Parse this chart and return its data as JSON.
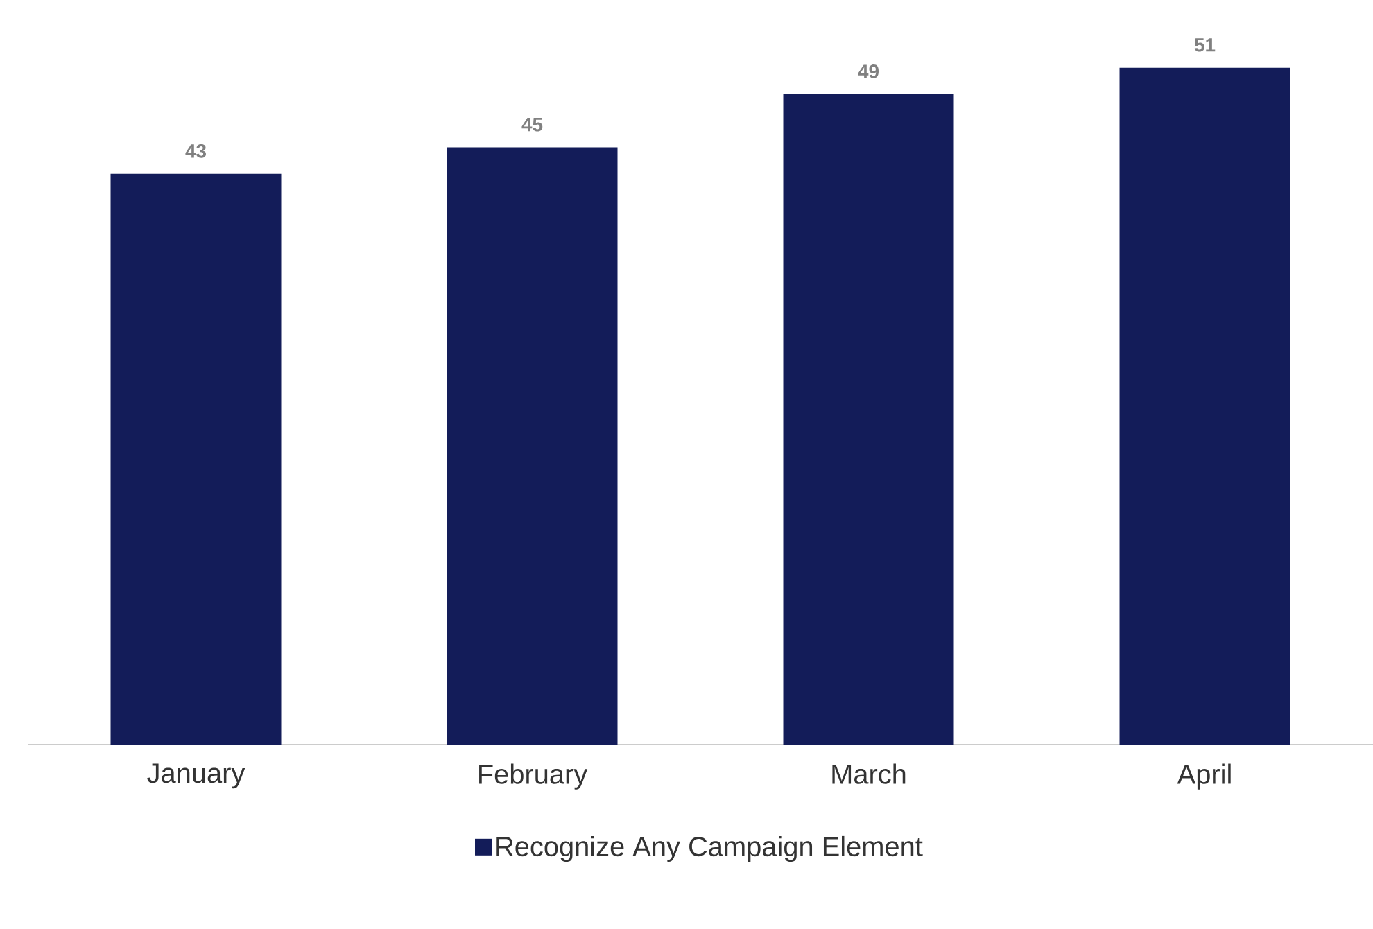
{
  "chart_data": {
    "type": "bar",
    "categories": [
      "January",
      "February",
      "March",
      "April"
    ],
    "series": [
      {
        "name": "Recognize Any Campaign Element",
        "color": "#131c59",
        "values": [
          43,
          45,
          49,
          51
        ]
      }
    ],
    "data_labels": true,
    "legend": "bottom"
  }
}
